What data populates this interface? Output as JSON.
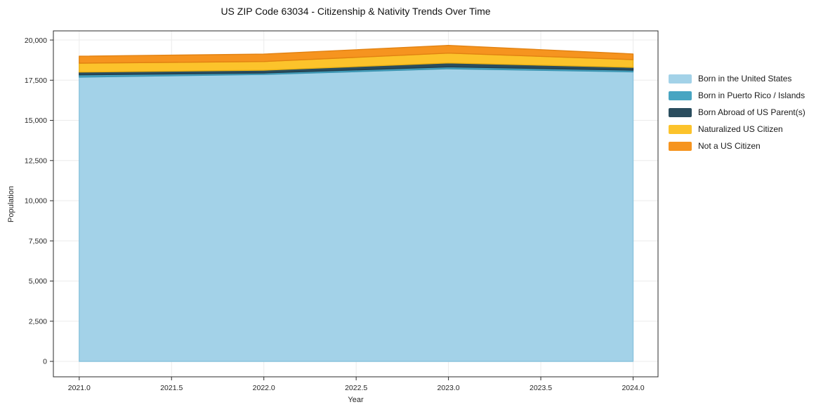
{
  "chart_data": {
    "type": "area",
    "stacked": true,
    "title": "US ZIP Code 63034 - Citizenship & Nativity Trends Over Time",
    "xlabel": "Year",
    "ylabel": "Population",
    "x": [
      2021,
      2022,
      2023,
      2024
    ],
    "series": [
      {
        "name": "Born in the United States",
        "color": "#a3d2e8",
        "edge": "#8bc4de",
        "values": [
          17690,
          17860,
          18210,
          18020
        ]
      },
      {
        "name": "Born in Puerto Rico / Islands",
        "color": "#48a5c2",
        "edge": "#3a93b0",
        "values": [
          140,
          90,
          120,
          105
        ]
      },
      {
        "name": "Born Abroad of US Parent(s)",
        "color": "#2a4d5e",
        "edge": "#223f4e",
        "values": [
          175,
          175,
          245,
          175
        ]
      },
      {
        "name": "Naturalized US Citizen",
        "color": "#fcc32b",
        "edge": "#eab113",
        "values": [
          555,
          535,
          610,
          480
        ]
      },
      {
        "name": "Not a US Citizen",
        "color": "#f6941f",
        "edge": "#e28212",
        "values": [
          435,
          465,
          480,
          355
        ]
      }
    ],
    "xticks": {
      "values": [
        2021,
        2021.5,
        2022,
        2022.5,
        2023,
        2023.5,
        2024
      ],
      "labels": [
        "2021.0",
        "2021.5",
        "2022.0",
        "2022.5",
        "2023.0",
        "2023.5",
        "2024.0"
      ]
    },
    "yticks": {
      "values": [
        0,
        2500,
        5000,
        7500,
        10000,
        12500,
        15000,
        17500,
        20000
      ],
      "labels": [
        "0",
        "2,500",
        "5,000",
        "7,500",
        "10,000",
        "12,500",
        "15,000",
        "17,500",
        "20,000"
      ]
    },
    "xlim": [
      2020.86,
      2024.135
    ],
    "ylim": [
      -960,
      20570
    ],
    "grid": true,
    "legend_position": "right",
    "colors": {
      "grid": "#ebebeb",
      "spine": "#2b2b2b",
      "tick_text": "#262626",
      "title_text": "#111111"
    }
  }
}
